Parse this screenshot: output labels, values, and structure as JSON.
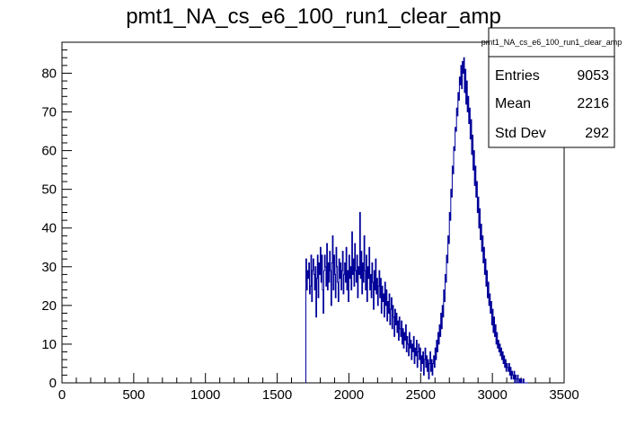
{
  "chart_data": {
    "type": "histogram",
    "title": "pmt1_NA_cs_e6_100_run1_clear_amp",
    "xlabel": "",
    "ylabel": "",
    "xlim": [
      0,
      3500
    ],
    "ylim": [
      0,
      88
    ],
    "x_ticks": [
      0,
      500,
      1000,
      1500,
      2000,
      2500,
      3000,
      3500
    ],
    "y_ticks": [
      0,
      10,
      20,
      30,
      40,
      50,
      60,
      70,
      80
    ],
    "line_color": "#000099",
    "grid": false,
    "bin_width": 5,
    "x_start": 1700,
    "counts": [
      32,
      24,
      29,
      27,
      31,
      23,
      25,
      33,
      21,
      29,
      32,
      28,
      24,
      30,
      17,
      27,
      33,
      22,
      31,
      28,
      35,
      26,
      33,
      24,
      18,
      29,
      33,
      30,
      25,
      36,
      24,
      31,
      26,
      34,
      29,
      20,
      31,
      38,
      24,
      33,
      28,
      22,
      35,
      30,
      26,
      21,
      32,
      27,
      31,
      24,
      29,
      34,
      23,
      28,
      31,
      26,
      35,
      24,
      29,
      21,
      33,
      27,
      30,
      24,
      39,
      28,
      32,
      25,
      36,
      29,
      26,
      33,
      22,
      30,
      28,
      44,
      27,
      34,
      23,
      31,
      26,
      38,
      29,
      24,
      33,
      21,
      30,
      27,
      35,
      24,
      28,
      22,
      31,
      26,
      19,
      29,
      24,
      32,
      23,
      27,
      20,
      25,
      29,
      22,
      27,
      18,
      25,
      21,
      23,
      17,
      26,
      20,
      24,
      16,
      21,
      18,
      23,
      15,
      19,
      22,
      14,
      20,
      17,
      12,
      19,
      15,
      18,
      13,
      16,
      11,
      17,
      14,
      12,
      16,
      10,
      14,
      9,
      13,
      11,
      15,
      8,
      12,
      10,
      7,
      13,
      9,
      11,
      6,
      10,
      8,
      12,
      5,
      9,
      7,
      11,
      4,
      8,
      10,
      6,
      9,
      3,
      7,
      5,
      8,
      2,
      6,
      9,
      4,
      7,
      3,
      6,
      1,
      5,
      8,
      3,
      6,
      2,
      5,
      7,
      4,
      9,
      6,
      11,
      8,
      13,
      10,
      15,
      12,
      18,
      14,
      20,
      17,
      24,
      21,
      28,
      26,
      33,
      31,
      38,
      36,
      44,
      42,
      50,
      48,
      56,
      54,
      61,
      60,
      66,
      65,
      71,
      69,
      75,
      73,
      79,
      77,
      82,
      76,
      83,
      80,
      84,
      75,
      81,
      72,
      78,
      70,
      74,
      67,
      71,
      63,
      68,
      59,
      64,
      55,
      60,
      51,
      56,
      48,
      52,
      44,
      48,
      40,
      45,
      37,
      41,
      34,
      38,
      31,
      35,
      28,
      32,
      25,
      29,
      22,
      26,
      20,
      23,
      18,
      21,
      15,
      19,
      13,
      17,
      12,
      15,
      10,
      13,
      9,
      11,
      8,
      10,
      7,
      9,
      6,
      8,
      5,
      7,
      4,
      6,
      3,
      5,
      4,
      3,
      5,
      2,
      4,
      1,
      3,
      2,
      1,
      3,
      0,
      2,
      1,
      0,
      2,
      1,
      0,
      1,
      0,
      1,
      0,
      0,
      1,
      0,
      0,
      0,
      0,
      0,
      0
    ]
  },
  "stats_box": {
    "name": "pmt1_NA_cs_e6_100_run1_clear_amp",
    "entries_label": "Entries",
    "entries_value": "9053",
    "mean_label": "Mean",
    "mean_value": "2216",
    "stddev_label": "Std Dev",
    "stddev_value": "292"
  }
}
